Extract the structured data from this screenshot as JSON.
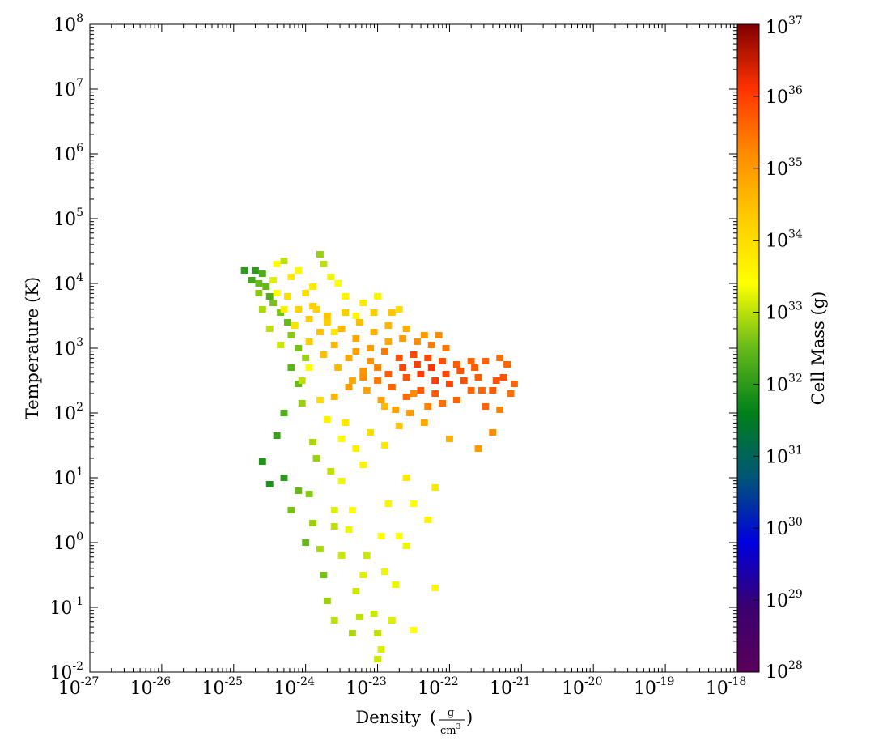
{
  "chart_data": {
    "type": "heatmap",
    "title": "",
    "xlabel": "Density",
    "xunit_num": "g",
    "xunit_den": "cm",
    "xunit_den_exp": "3",
    "ylabel": "Temperature  (K)",
    "colorbar_label": "Cell Mass  (g)",
    "x_scale": "log",
    "y_scale": "log",
    "color_scale": "log",
    "x_log_range": [
      -27,
      -18
    ],
    "y_log_range": [
      -2,
      8
    ],
    "color_log_range": [
      28,
      37
    ],
    "x_ticks": [
      {
        "base": "10",
        "exp": "-27"
      },
      {
        "base": "10",
        "exp": "-26"
      },
      {
        "base": "10",
        "exp": "-25"
      },
      {
        "base": "10",
        "exp": "-24"
      },
      {
        "base": "10",
        "exp": "-23"
      },
      {
        "base": "10",
        "exp": "-22"
      },
      {
        "base": "10",
        "exp": "-21"
      },
      {
        "base": "10",
        "exp": "-20"
      },
      {
        "base": "10",
        "exp": "-19"
      },
      {
        "base": "10",
        "exp": "-18"
      }
    ],
    "y_ticks": [
      {
        "base": "10",
        "exp": "-2"
      },
      {
        "base": "10",
        "exp": "-1"
      },
      {
        "base": "10",
        "exp": "0"
      },
      {
        "base": "10",
        "exp": "1"
      },
      {
        "base": "10",
        "exp": "2"
      },
      {
        "base": "10",
        "exp": "3"
      },
      {
        "base": "10",
        "exp": "4"
      },
      {
        "base": "10",
        "exp": "5"
      },
      {
        "base": "10",
        "exp": "6"
      },
      {
        "base": "10",
        "exp": "7"
      },
      {
        "base": "10",
        "exp": "8"
      }
    ],
    "colorbar_ticks": [
      {
        "base": "10",
        "exp": "28"
      },
      {
        "base": "10",
        "exp": "29"
      },
      {
        "base": "10",
        "exp": "30"
      },
      {
        "base": "10",
        "exp": "31"
      },
      {
        "base": "10",
        "exp": "32"
      },
      {
        "base": "10",
        "exp": "33"
      },
      {
        "base": "10",
        "exp": "34"
      },
      {
        "base": "10",
        "exp": "35"
      },
      {
        "base": "10",
        "exp": "36"
      },
      {
        "base": "10",
        "exp": "37"
      }
    ],
    "colormap": [
      "#5a005a",
      "#3b006f",
      "#0000dd",
      "#005577",
      "#00801a",
      "#66b91a",
      "#ffff00",
      "#ffcc00",
      "#ff8c00",
      "#ff3300",
      "#800000"
    ],
    "distribution_summary": {
      "region_x_log": [
        -25,
        -21.1
      ],
      "region_y_log": [
        -1.8,
        4.5
      ],
      "peak_density_log": -22.4,
      "peak_temperature_log": 2.5,
      "peak_mass_log": 36.0
    },
    "cells": [
      [
        -24.85,
        4.2,
        32.0
      ],
      [
        -24.7,
        4.2,
        32.0
      ],
      [
        -24.6,
        4.15,
        32.3
      ],
      [
        -24.75,
        4.05,
        32.2
      ],
      [
        -24.65,
        4.0,
        32.5
      ],
      [
        -24.55,
        3.95,
        32.5
      ],
      [
        -24.5,
        3.8,
        32.3
      ],
      [
        -24.45,
        3.7,
        32.6
      ],
      [
        -24.35,
        3.55,
        32.6
      ],
      [
        -24.25,
        3.4,
        32.5
      ],
      [
        -24.2,
        3.2,
        32.7
      ],
      [
        -24.1,
        3.0,
        32.6
      ],
      [
        -24.0,
        2.85,
        32.8
      ],
      [
        -24.2,
        2.7,
        32.4
      ],
      [
        -24.1,
        2.45,
        32.5
      ],
      [
        -24.3,
        2.0,
        32.3
      ],
      [
        -24.05,
        2.15,
        32.8
      ],
      [
        -24.4,
        1.65,
        32.1
      ],
      [
        -24.3,
        1.0,
        32.0
      ],
      [
        -24.6,
        1.25,
        31.9
      ],
      [
        -24.5,
        0.9,
        31.9
      ],
      [
        -24.1,
        0.8,
        32.5
      ],
      [
        -24.2,
        0.5,
        32.6
      ],
      [
        -23.95,
        0.75,
        32.7
      ],
      [
        -23.9,
        0.3,
        32.8
      ],
      [
        -24.0,
        0.0,
        32.5
      ],
      [
        -23.8,
        -0.1,
        32.9
      ],
      [
        -23.6,
        0.25,
        33.0
      ],
      [
        -23.75,
        -0.5,
        32.6
      ],
      [
        -23.7,
        -0.9,
        32.8
      ],
      [
        -23.6,
        -1.2,
        33.0
      ],
      [
        -23.3,
        -0.75,
        33.1
      ],
      [
        -23.25,
        -1.15,
        33.0
      ],
      [
        -23.35,
        -1.4,
        32.9
      ],
      [
        -23.05,
        -1.1,
        33.1
      ],
      [
        -23.0,
        -1.4,
        33.0
      ],
      [
        -22.8,
        -1.2,
        33.2
      ],
      [
        -22.75,
        -0.65,
        33.3
      ],
      [
        -22.9,
        -0.45,
        33.3
      ],
      [
        -22.7,
        0.1,
        33.4
      ],
      [
        -22.85,
        0.6,
        33.6
      ],
      [
        -22.5,
        0.6,
        33.4
      ],
      [
        -22.3,
        0.35,
        33.6
      ],
      [
        -22.2,
        0.85,
        33.8
      ],
      [
        -22.6,
        -0.05,
        33.3
      ],
      [
        -23.0,
        -1.8,
        33.1
      ],
      [
        -22.95,
        -1.65,
        33.2
      ],
      [
        -22.5,
        -1.35,
        33.4
      ],
      [
        -22.2,
        -0.7,
        33.5
      ],
      [
        -23.15,
        -0.2,
        33.1
      ],
      [
        -22.6,
        1.0,
        33.8
      ],
      [
        -22.0,
        1.6,
        34.7
      ],
      [
        -21.6,
        1.45,
        35.0
      ],
      [
        -21.4,
        1.7,
        35.2
      ],
      [
        -21.3,
        2.05,
        35.3
      ],
      [
        -21.15,
        2.3,
        35.5
      ],
      [
        -21.25,
        2.55,
        35.8
      ],
      [
        -21.35,
        2.5,
        35.8
      ],
      [
        -21.4,
        2.35,
        35.7
      ],
      [
        -21.5,
        2.1,
        35.6
      ],
      [
        -23.2,
        1.2,
        33.6
      ],
      [
        -23.35,
        0.5,
        33.4
      ],
      [
        -23.5,
        0.95,
        33.3
      ],
      [
        -23.65,
        1.1,
        33.0
      ],
      [
        -23.85,
        1.3,
        32.8
      ],
      [
        -23.9,
        1.55,
        32.9
      ],
      [
        -23.45,
        1.85,
        33.8
      ],
      [
        -22.9,
        2.1,
        34.6
      ],
      [
        -22.5,
        2.3,
        35.2
      ],
      [
        -23.6,
        3.25,
        33.8
      ],
      [
        -23.3,
        3.5,
        33.5
      ],
      [
        -23.8,
        4.45,
        32.8
      ],
      [
        -23.75,
        4.3,
        33.0
      ],
      [
        -23.65,
        4.1,
        33.3
      ],
      [
        -24.3,
        4.35,
        33.0
      ],
      [
        -24.1,
        4.2,
        33.5
      ],
      [
        -23.9,
        3.95,
        33.8
      ],
      [
        -24.25,
        3.8,
        34.0
      ],
      [
        -24.1,
        3.6,
        34.2
      ],
      [
        -23.95,
        3.45,
        34.3
      ],
      [
        -23.8,
        3.25,
        34.5
      ],
      [
        -23.6,
        3.05,
        34.6
      ],
      [
        -23.4,
        2.85,
        34.8
      ],
      [
        -23.2,
        2.65,
        35.1
      ],
      [
        -23.0,
        2.5,
        35.4
      ],
      [
        -22.8,
        2.4,
        35.6
      ],
      [
        -22.6,
        2.55,
        35.8
      ],
      [
        -22.4,
        2.6,
        36.0
      ],
      [
        -22.2,
        2.5,
        36.0
      ],
      [
        -22.0,
        2.45,
        35.9
      ],
      [
        -21.8,
        2.5,
        35.8
      ],
      [
        -21.6,
        2.55,
        35.7
      ],
      [
        -21.5,
        2.8,
        35.6
      ],
      [
        -21.7,
        2.8,
        35.6
      ],
      [
        -21.9,
        2.75,
        35.7
      ],
      [
        -22.1,
        2.8,
        35.8
      ],
      [
        -22.3,
        2.85,
        35.9
      ],
      [
        -22.5,
        2.9,
        35.9
      ],
      [
        -22.7,
        2.85,
        35.8
      ],
      [
        -22.9,
        2.95,
        35.4
      ],
      [
        -23.1,
        3.0,
        35.0
      ],
      [
        -23.3,
        3.15,
        34.8
      ],
      [
        -23.5,
        3.3,
        34.6
      ],
      [
        -23.7,
        3.5,
        34.4
      ],
      [
        -23.9,
        3.65,
        34.2
      ],
      [
        -23.45,
        3.55,
        34.3
      ],
      [
        -23.25,
        3.4,
        34.5
      ],
      [
        -23.05,
        3.25,
        34.7
      ],
      [
        -22.85,
        3.1,
        34.8
      ],
      [
        -22.65,
        3.15,
        35.0
      ],
      [
        -22.45,
        3.1,
        35.2
      ],
      [
        -22.25,
        3.05,
        35.4
      ],
      [
        -22.05,
        3.0,
        35.4
      ],
      [
        -22.85,
        3.35,
        34.6
      ],
      [
        -22.6,
        3.3,
        34.7
      ],
      [
        -22.35,
        3.2,
        35.0
      ],
      [
        -22.15,
        3.2,
        35.2
      ],
      [
        -23.05,
        3.55,
        34.3
      ],
      [
        -22.8,
        3.55,
        34.4
      ],
      [
        -22.95,
        2.2,
        34.9
      ],
      [
        -22.75,
        2.05,
        34.9
      ],
      [
        -22.55,
        2.0,
        35.0
      ],
      [
        -22.3,
        2.1,
        35.3
      ],
      [
        -22.1,
        2.15,
        35.5
      ],
      [
        -21.9,
        2.2,
        35.6
      ],
      [
        -23.15,
        2.35,
        34.9
      ],
      [
        -23.35,
        2.5,
        34.8
      ],
      [
        -23.55,
        2.7,
        34.6
      ],
      [
        -23.75,
        2.9,
        34.5
      ],
      [
        -23.95,
        3.1,
        34.3
      ],
      [
        -24.15,
        3.35,
        33.9
      ],
      [
        -24.3,
        3.6,
        33.7
      ],
      [
        -24.4,
        3.85,
        33.4
      ],
      [
        -24.45,
        4.05,
        33.2
      ],
      [
        -24.4,
        4.3,
        33.4
      ],
      [
        -24.2,
        4.1,
        33.8
      ],
      [
        -24.0,
        3.85,
        34.0
      ],
      [
        -23.85,
        3.6,
        34.2
      ],
      [
        -23.7,
        3.4,
        34.3
      ],
      [
        -23.3,
        2.95,
        34.9
      ],
      [
        -23.1,
        2.8,
        35.1
      ],
      [
        -22.6,
        2.25,
        35.5
      ],
      [
        -22.4,
        2.35,
        35.7
      ],
      [
        -22.2,
        2.3,
        35.7
      ],
      [
        -22.05,
        2.6,
        35.9
      ],
      [
        -21.85,
        2.65,
        35.8
      ],
      [
        -21.65,
        2.7,
        35.7
      ],
      [
        -21.55,
        2.35,
        35.6
      ],
      [
        -21.7,
        2.35,
        35.6
      ],
      [
        -21.2,
        2.75,
        35.6
      ],
      [
        -21.3,
        2.85,
        35.5
      ],
      [
        -21.1,
        2.45,
        35.6
      ],
      [
        -22.65,
        2.7,
        35.9
      ],
      [
        -22.45,
        2.75,
        36.0
      ],
      [
        -22.25,
        2.7,
        36.1
      ],
      [
        -22.85,
        2.6,
        35.7
      ],
      [
        -23.0,
        2.7,
        35.3
      ],
      [
        -23.2,
        2.55,
        35.2
      ],
      [
        -23.4,
        2.4,
        35.0
      ],
      [
        -23.6,
        2.25,
        34.6
      ],
      [
        -23.8,
        2.2,
        34.0
      ],
      [
        -23.7,
        1.9,
        33.6
      ],
      [
        -23.5,
        1.6,
        33.5
      ],
      [
        -23.3,
        1.45,
        33.7
      ],
      [
        -23.1,
        1.7,
        34.0
      ],
      [
        -22.9,
        1.5,
        33.8
      ],
      [
        -22.7,
        1.8,
        34.4
      ],
      [
        -22.35,
        1.85,
        34.8
      ],
      [
        -23.6,
        0.5,
        33.2
      ],
      [
        -23.4,
        0.2,
        33.3
      ],
      [
        -23.2,
        -0.5,
        33.2
      ],
      [
        -22.95,
        0.1,
        33.4
      ],
      [
        -23.5,
        -0.2,
        33.1
      ],
      [
        -24.05,
        2.5,
        33.0
      ],
      [
        -23.95,
        2.7,
        33.4
      ],
      [
        -24.35,
        3.05,
        33.1
      ],
      [
        -24.5,
        3.3,
        33.0
      ],
      [
        -24.6,
        3.6,
        32.9
      ],
      [
        -24.65,
        3.85,
        32.7
      ],
      [
        -23.55,
        4.0,
        33.4
      ],
      [
        -23.45,
        3.8,
        33.6
      ],
      [
        -23.2,
        3.7,
        33.8
      ],
      [
        -23.0,
        3.8,
        33.6
      ],
      [
        -22.7,
        3.6,
        34.0
      ]
    ]
  }
}
